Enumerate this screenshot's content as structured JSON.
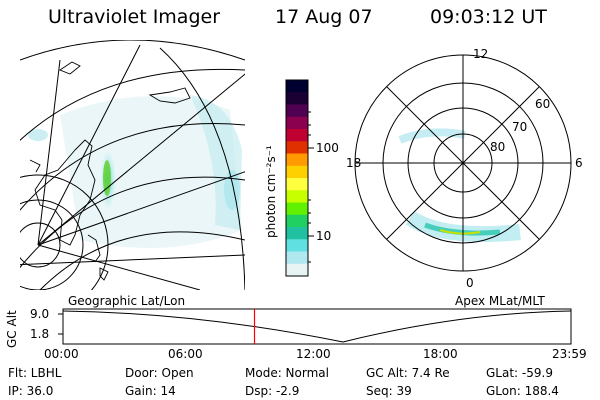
{
  "header": {
    "instrument": "Ultraviolet Imager",
    "date": "17 Aug 07",
    "time": "09:03:12 UT"
  },
  "colorbar": {
    "unit_label": "photon cm⁻²s⁻¹",
    "ticks": [
      "100",
      "10"
    ],
    "colors": [
      "#000030",
      "#1a0033",
      "#500050",
      "#8c0050",
      "#c00030",
      "#e03000",
      "#ff9a00",
      "#ffd000",
      "#ffff40",
      "#c8ff00",
      "#60f000",
      "#20d060",
      "#20c0a0",
      "#60e0e0",
      "#b0e8f0",
      "#e8f4f4"
    ]
  },
  "polar_plot": {
    "mlt_labels": {
      "top": "12",
      "left": "18",
      "right": "6",
      "bottom": "0"
    },
    "lat_labels": [
      "60",
      "70",
      "80"
    ]
  },
  "timeline": {
    "left_title": "Geographic Lat/Lon",
    "right_title": "Apex MLat/MLT",
    "y_axis_label": "GC Alt",
    "y_ticks": [
      "9.0",
      "1.8"
    ],
    "x_ticks": [
      "00:00",
      "06:00",
      "12:00",
      "18:00",
      "23:59"
    ],
    "current_time_fraction": 0.377
  },
  "status": {
    "filter": "Flt: LBHL",
    "ip": "IP: 36.0",
    "door": "Door: Open",
    "gain": "Gain: 14",
    "mode": "Mode: Normal",
    "dsp": "Dsp:    -2.9",
    "gc_alt": "GC Alt: 7.4 Re",
    "seq": "Seq: 39",
    "glat": "GLat: -59.9",
    "glon": "GLon: 188.4"
  }
}
